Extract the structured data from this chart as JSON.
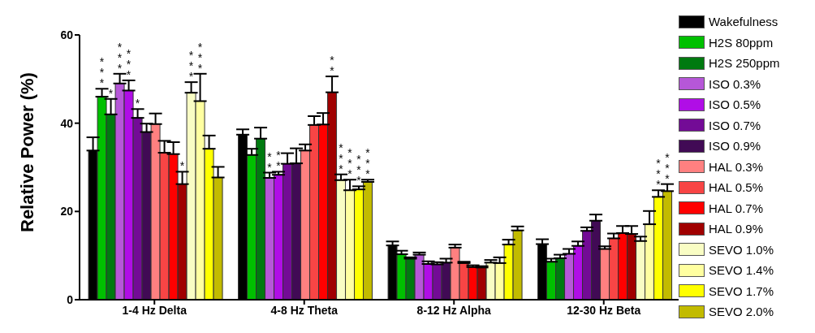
{
  "chart_data": {
    "type": "bar",
    "ylabel": "Relative Power (%)",
    "categories": [
      "1-4 Hz Delta",
      "4-8 Hz Theta",
      "8-12 Hz Alpha",
      "12-30 Hz Beta"
    ],
    "ylim": [
      0,
      60
    ],
    "yticks": [
      0,
      20,
      40,
      60
    ],
    "grid": false,
    "legend": "right",
    "series": [
      {
        "name": "Wakefulness",
        "color": "#000000",
        "values": [
          33.8,
          37.4,
          12.3,
          12.6
        ],
        "errors": [
          [
            33.8,
            36.8
          ],
          [
            37.4,
            38.6
          ],
          [
            12.3,
            13.2
          ],
          [
            12.6,
            13.7
          ]
        ]
      },
      {
        "name": "H2S 80ppm",
        "color": "#00c000",
        "values": [
          46.0,
          32.8,
          10.3,
          8.6
        ],
        "errors": [
          [
            46.0,
            47.8
          ],
          [
            32.8,
            34.2
          ],
          [
            10.3,
            11.1
          ],
          [
            8.6,
            9.3
          ]
        ],
        "value_labels": [
          "***",
          null,
          null,
          null
        ]
      },
      {
        "name": "H2S 250ppm",
        "color": "#007a10",
        "values": [
          42.0,
          36.5,
          9.3,
          9.4
        ],
        "errors": [
          [
            42.0,
            45.5
          ],
          [
            36.5,
            39.0
          ],
          [
            9.3,
            9.6
          ],
          [
            9.4,
            10.2
          ]
        ],
        "value_labels": [
          "*",
          null,
          null,
          null
        ]
      },
      {
        "name": "ISO 0.3%",
        "color": "#b657d8",
        "values": [
          49.0,
          27.6,
          10.2,
          10.4
        ],
        "errors": [
          [
            49.0,
            51.2
          ],
          [
            27.6,
            28.8
          ],
          [
            10.2,
            10.7
          ],
          [
            10.4,
            11.5
          ]
        ],
        "value_labels": [
          "***",
          "**",
          null,
          null
        ]
      },
      {
        "name": "ISO 0.5%",
        "color": "#b00ee6",
        "values": [
          47.4,
          28.3,
          8.1,
          12.2
        ],
        "errors": [
          [
            47.4,
            49.7
          ],
          [
            28.3,
            29.0
          ],
          [
            8.1,
            8.7
          ],
          [
            12.2,
            13.2
          ]
        ],
        "value_labels": [
          "***",
          "**",
          null,
          null
        ]
      },
      {
        "name": "ISO 0.7%",
        "color": "#730b96",
        "values": [
          41.2,
          30.8,
          8.0,
          15.6
        ],
        "errors": [
          [
            41.2,
            43.2
          ],
          [
            30.8,
            33.2
          ],
          [
            8.0,
            8.5
          ],
          [
            15.6,
            16.4
          ]
        ],
        "value_labels": [
          "*",
          null,
          null,
          null
        ]
      },
      {
        "name": "ISO 0.9%",
        "color": "#410a55",
        "values": [
          38.0,
          30.9,
          8.4,
          17.9
        ],
        "errors": [
          [
            38.0,
            39.9
          ],
          [
            30.9,
            34.3
          ],
          [
            8.4,
            9.3
          ],
          [
            17.9,
            19.3
          ]
        ]
      },
      {
        "name": "HAL 0.3%",
        "color": "#ff8080",
        "values": [
          39.8,
          33.8,
          11.8,
          11.5
        ],
        "errors": [
          [
            39.8,
            42.2
          ],
          [
            33.8,
            35.2
          ],
          [
            11.8,
            12.5
          ],
          [
            11.5,
            12.1
          ]
        ]
      },
      {
        "name": "HAL 0.5%",
        "color": "#f84545",
        "values": [
          33.3,
          39.6,
          8.3,
          13.9
        ],
        "errors": [
          [
            33.3,
            36.0
          ],
          [
            39.6,
            41.6
          ],
          [
            8.3,
            8.6
          ],
          [
            13.9,
            15.0
          ]
        ]
      },
      {
        "name": "HAL 0.7%",
        "color": "#ff0000",
        "values": [
          33.0,
          39.7,
          7.4,
          15.1
        ],
        "errors": [
          [
            33.0,
            35.7
          ],
          [
            39.7,
            42.3
          ],
          [
            7.4,
            7.8
          ],
          [
            15.1,
            16.7
          ]
        ]
      },
      {
        "name": "HAL 0.9%",
        "color": "#a00000",
        "values": [
          26.2,
          47.0,
          7.3,
          14.9
        ],
        "errors": [
          [
            26.2,
            29.0
          ],
          [
            47.0,
            50.6
          ],
          [
            7.3,
            7.6
          ],
          [
            14.9,
            16.7
          ]
        ],
        "value_labels": [
          "*",
          "**",
          null,
          null
        ]
      },
      {
        "name": "SEVO 1.0%",
        "color": "#f9fdc4",
        "values": [
          46.9,
          27.1,
          8.4,
          13.3
        ],
        "errors": [
          [
            46.9,
            49.3
          ],
          [
            27.1,
            28.4
          ],
          [
            8.4,
            9.0
          ],
          [
            13.3,
            14.3
          ]
        ],
        "value_labels": [
          "***",
          "***",
          null,
          null
        ]
      },
      {
        "name": "SEVO 1.4%",
        "color": "#ffffa0",
        "values": [
          45.0,
          24.8,
          8.3,
          17.1
        ],
        "errors": [
          [
            45.0,
            51.2
          ],
          [
            24.8,
            27.2
          ],
          [
            8.3,
            9.6
          ],
          [
            17.1,
            20.1
          ]
        ],
        "value_labels": [
          "***",
          "***",
          null,
          null
        ]
      },
      {
        "name": "SEVO 1.7%",
        "color": "#ffff00",
        "values": [
          34.2,
          25.0,
          12.5,
          23.3
        ],
        "errors": [
          [
            34.2,
            37.2
          ],
          [
            25.0,
            25.7
          ],
          [
            12.5,
            13.6
          ],
          [
            23.3,
            24.8
          ]
        ],
        "value_labels": [
          null,
          "***",
          null,
          "***"
        ]
      },
      {
        "name": "SEVO 2.0%",
        "color": "#c2bb00",
        "values": [
          27.7,
          26.7,
          15.7,
          24.6
        ],
        "errors": [
          [
            27.7,
            30.1
          ],
          [
            26.7,
            27.2
          ],
          [
            15.7,
            16.6
          ],
          [
            24.6,
            26.2
          ]
        ],
        "value_labels": [
          null,
          "***",
          null,
          "***"
        ]
      }
    ]
  }
}
